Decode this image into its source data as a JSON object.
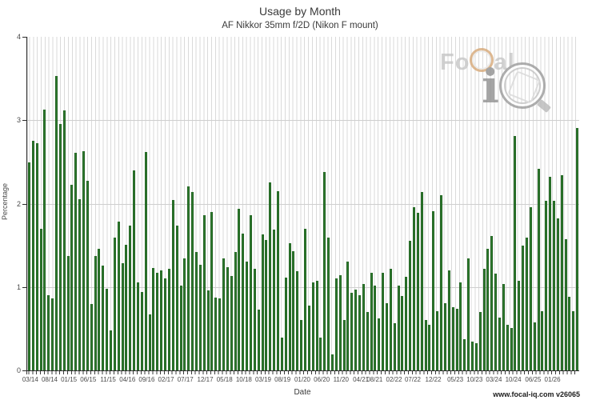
{
  "title": "Usage by Month",
  "subtitle": "AF Nikkor 35mm f/2D (Nikon F mount)",
  "footer": "www.focal-iq.com  v26065",
  "logo": {
    "word_prefix": "Fo",
    "word_suffix": "al",
    "i_letter": "i"
  },
  "axes": {
    "y_label": "Percentage",
    "x_label": "Date"
  },
  "colors": {
    "bar": "#2e7d2e",
    "bar_edge": "#236223",
    "grid": "#d0d0d0",
    "axis": "#2b2b2b",
    "logo_ring": "#d6a878"
  },
  "chart_data": {
    "type": "bar",
    "title": "Usage by Month",
    "subtitle": "AF Nikkor 35mm f/2D (Nikon F mount)",
    "xlabel": "Date",
    "ylabel": "Percentage",
    "ylim": [
      0,
      4
    ],
    "y_ticks": [
      0,
      1,
      2,
      3,
      4
    ],
    "grid": "horizontal lines at 1,2,3 plus vertical line per month slot",
    "legend": "none",
    "x_tick_labels": [
      {
        "label": "03/14",
        "pos": 0.007
      },
      {
        "label": "08/14",
        "pos": 0.042
      },
      {
        "label": "01/15",
        "pos": 0.077
      },
      {
        "label": "06/15",
        "pos": 0.112
      },
      {
        "label": "11/15",
        "pos": 0.148
      },
      {
        "label": "04/16",
        "pos": 0.183
      },
      {
        "label": "09/16",
        "pos": 0.218
      },
      {
        "label": "02/17",
        "pos": 0.253
      },
      {
        "label": "07/17",
        "pos": 0.288
      },
      {
        "label": "12/17",
        "pos": 0.324
      },
      {
        "label": "05/18",
        "pos": 0.359
      },
      {
        "label": "10/18",
        "pos": 0.394
      },
      {
        "label": "03/19",
        "pos": 0.429
      },
      {
        "label": "08/19",
        "pos": 0.464
      },
      {
        "label": "01/20",
        "pos": 0.5
      },
      {
        "label": "06/20",
        "pos": 0.535
      },
      {
        "label": "11/20",
        "pos": 0.57
      },
      {
        "label": "04/21",
        "pos": 0.606
      },
      {
        "label": "08/21",
        "pos": 0.631
      },
      {
        "label": "02/22",
        "pos": 0.666
      },
      {
        "label": "07/22",
        "pos": 0.7
      },
      {
        "label": "12/22",
        "pos": 0.737
      },
      {
        "label": "05/23",
        "pos": 0.777
      },
      {
        "label": "10/23",
        "pos": 0.812
      },
      {
        "label": "03/24",
        "pos": 0.847
      },
      {
        "label": "10/24",
        "pos": 0.882
      },
      {
        "label": "06/25",
        "pos": 0.918
      },
      {
        "label": "01/26",
        "pos": 0.953
      }
    ],
    "values": [
      2.49,
      2.75,
      2.72,
      1.7,
      3.13,
      0.9,
      0.86,
      3.53,
      2.95,
      3.12,
      1.37,
      2.23,
      2.61,
      2.05,
      2.63,
      2.27,
      0.8,
      1.37,
      1.46,
      1.26,
      0.98,
      0.48,
      1.59,
      1.78,
      1.29,
      1.51,
      1.74,
      2.4,
      1.06,
      0.94,
      2.62,
      0.67,
      1.23,
      1.17,
      1.2,
      1.1,
      1.22,
      2.04,
      1.74,
      1.02,
      1.34,
      2.21,
      2.14,
      1.42,
      1.27,
      1.86,
      0.96,
      1.9,
      0.87,
      0.86,
      1.34,
      1.24,
      1.13,
      1.42,
      1.94,
      1.64,
      1.3,
      1.86,
      1.22,
      0.73,
      1.63,
      1.56,
      2.25,
      1.69,
      2.15,
      0.39,
      1.11,
      1.53,
      1.43,
      1.19,
      0.6,
      1.7,
      0.78,
      1.06,
      1.07,
      0.39,
      2.38,
      1.59,
      0.19,
      1.1,
      1.14,
      0.6,
      1.3,
      0.93,
      0.97,
      0.9,
      1.04,
      0.7,
      1.17,
      1.02,
      0.62,
      1.17,
      0.81,
      1.22,
      0.57,
      1.02,
      0.89,
      1.12,
      1.55,
      1.96,
      1.89,
      2.14,
      0.6,
      0.55,
      1.91,
      0.71,
      2.1,
      0.81,
      1.2,
      0.76,
      0.74,
      1.06,
      0.37,
      1.34,
      0.35,
      0.33,
      0.7,
      1.22,
      1.46,
      1.61,
      1.16,
      0.63,
      1.04,
      0.55,
      0.51,
      2.81,
      1.07,
      1.5,
      1.59,
      1.96,
      0.58,
      2.42,
      0.71,
      2.03,
      2.32,
      2.03,
      1.82,
      2.34,
      1.57,
      0.88,
      0.71,
      2.91
    ]
  }
}
